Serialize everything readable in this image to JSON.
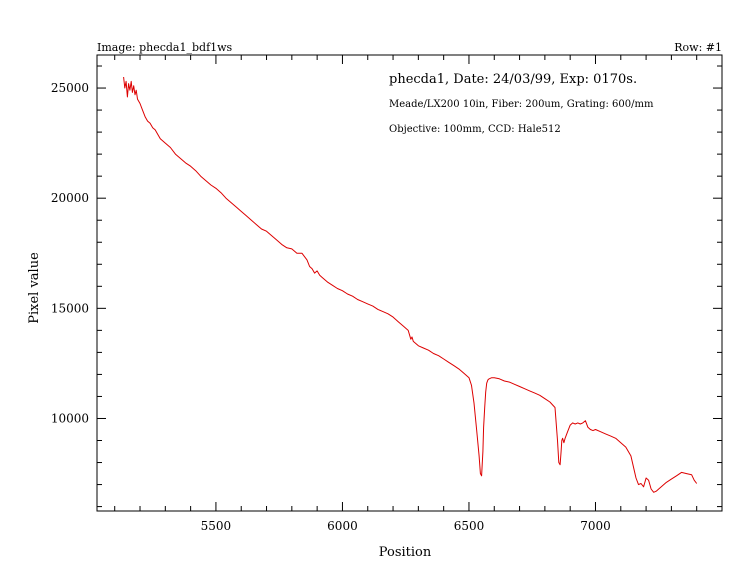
{
  "header": {
    "image_label": "Image: phecda1_bdf1ws",
    "row_label": "Row: #1"
  },
  "annotations": {
    "line1": "phecda1, Date: 24/03/99, Exp: 0170s.",
    "line2": "Meade/LX200 10in, Fiber: 200um, Grating: 600/mm",
    "line3": "Objective: 100mm, CCD: Hale512"
  },
  "colors": {
    "series": "#dd0000",
    "axis": "#000000",
    "background": "#ffffff"
  },
  "chart_data": {
    "type": "line",
    "title": "",
    "xlabel": "Position",
    "ylabel": "Pixel value",
    "xlim": [
      5030,
      7500
    ],
    "ylim": [
      5800,
      26500
    ],
    "x_ticks": [
      5500,
      6000,
      6500,
      7000
    ],
    "y_ticks": [
      10000,
      15000,
      20000,
      25000
    ],
    "grid": false,
    "legend": "none",
    "series": [
      {
        "x": [
          5135,
          5140,
          5145,
          5150,
          5155,
          5160,
          5165,
          5170,
          5175,
          5180,
          5185,
          5190,
          5200,
          5210,
          5220,
          5230,
          5240,
          5250,
          5260,
          5270,
          5280,
          5300,
          5320,
          5340,
          5360,
          5380,
          5400,
          5420,
          5440,
          5460,
          5480,
          5500,
          5520,
          5540,
          5560,
          5580,
          5600,
          5620,
          5640,
          5660,
          5680,
          5700,
          5720,
          5740,
          5760,
          5780,
          5800,
          5820,
          5840,
          5860,
          5870,
          5880,
          5890,
          5900,
          5910,
          5920,
          5940,
          5960,
          5980,
          6000,
          6020,
          6040,
          6060,
          6080,
          6100,
          6120,
          6140,
          6160,
          6180,
          6200,
          6220,
          6240,
          6260,
          6270,
          6275,
          6280,
          6300,
          6320,
          6340,
          6360,
          6380,
          6400,
          6420,
          6440,
          6460,
          6480,
          6500,
          6510,
          6520,
          6530,
          6540,
          6545,
          6550,
          6555,
          6558,
          6562,
          6566,
          6570,
          6575,
          6580,
          6590,
          6600,
          6620,
          6640,
          6660,
          6680,
          6700,
          6720,
          6740,
          6760,
          6780,
          6800,
          6820,
          6840,
          6850,
          6855,
          6860,
          6864,
          6867,
          6870,
          6875,
          6880,
          6890,
          6900,
          6910,
          6920,
          6930,
          6940,
          6950,
          6960,
          6970,
          6980,
          6990,
          7000,
          7020,
          7040,
          7060,
          7080,
          7100,
          7120,
          7140,
          7160,
          7170,
          7180,
          7190,
          7200,
          7210,
          7220,
          7230,
          7240,
          7250,
          7260,
          7280,
          7300,
          7320,
          7340,
          7360,
          7380,
          7390,
          7400
        ],
        "y": [
          25500,
          25000,
          25300,
          24600,
          25200,
          24900,
          25300,
          24800,
          25100,
          24700,
          24900,
          24500,
          24300,
          24000,
          23700,
          23500,
          23400,
          23200,
          23100,
          22900,
          22700,
          22500,
          22300,
          22000,
          21800,
          21600,
          21450,
          21250,
          21000,
          20800,
          20600,
          20450,
          20250,
          20000,
          19800,
          19600,
          19400,
          19200,
          19000,
          18800,
          18600,
          18500,
          18300,
          18100,
          17900,
          17750,
          17700,
          17500,
          17500,
          17200,
          16900,
          16800,
          16600,
          16700,
          16500,
          16400,
          16200,
          16050,
          15900,
          15800,
          15650,
          15550,
          15400,
          15300,
          15200,
          15100,
          14950,
          14850,
          14750,
          14600,
          14400,
          14200,
          14000,
          13600,
          13700,
          13500,
          13300,
          13200,
          13100,
          12950,
          12850,
          12700,
          12550,
          12400,
          12250,
          12050,
          11850,
          11500,
          10700,
          9500,
          8300,
          7500,
          7400,
          8500,
          9600,
          10500,
          11200,
          11600,
          11750,
          11800,
          11850,
          11850,
          11800,
          11700,
          11650,
          11550,
          11450,
          11350,
          11250,
          11150,
          11050,
          10900,
          10750,
          10500,
          9000,
          8000,
          7900,
          8500,
          9000,
          9100,
          8900,
          9100,
          9400,
          9700,
          9800,
          9750,
          9800,
          9750,
          9800,
          9900,
          9600,
          9500,
          9450,
          9500,
          9400,
          9300,
          9200,
          9100,
          8900,
          8700,
          8300,
          7300,
          7000,
          7050,
          6900,
          7300,
          7200,
          6800,
          6650,
          6700,
          6800,
          6900,
          7100,
          7250,
          7400,
          7550,
          7500,
          7450,
          7200,
          7050
        ]
      }
    ]
  }
}
